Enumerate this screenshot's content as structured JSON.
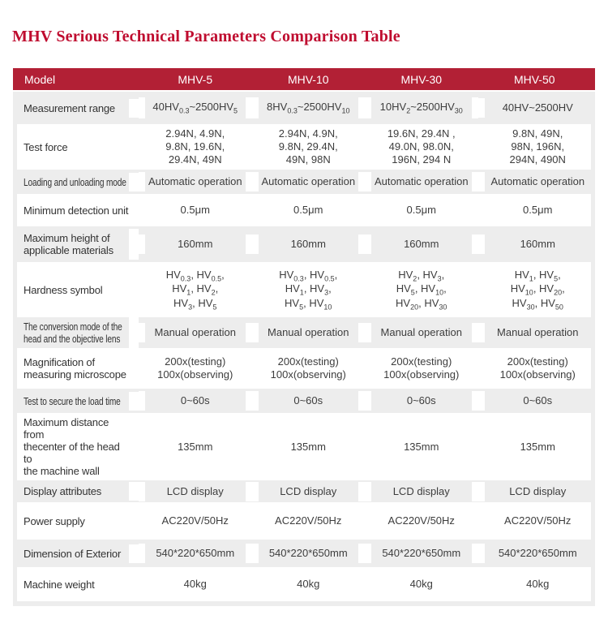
{
  "title": "MHV Serious Technical Parameters Comparison Table",
  "colors": {
    "title": "#BF0C2F",
    "header_bg": "#B22035",
    "row_gray": "#EDEDED",
    "header_text": "#FFFFFF"
  },
  "table": {
    "header": {
      "label": "Model",
      "models": [
        "MHV-5",
        "MHV-10",
        "MHV-30",
        "MHV-50"
      ]
    },
    "rows": [
      {
        "label": "Measurement range",
        "condensed": false,
        "values": [
          "40HV_{0.3}~2500HV_{5}",
          "8HV_{0.3}~2500HV_{10}",
          "10HV_{2}~2500HV_{30}",
          "40HV~2500HV"
        ]
      },
      {
        "label": "Test force",
        "condensed": false,
        "values": [
          "2.94N、4.9N、\n9.8N、19.6N、\n29.4N、49N",
          "2.94N、4.9N、\n9.8N、29.4N、\n49N、98N",
          "19.6N、29.4N 、\n49.0N、98.0N、\n196N、294 N",
          "9.8N、49N、\n98N、196N、\n294N、490N"
        ]
      },
      {
        "label": "Loading and unloading mode",
        "condensed": true,
        "values": [
          "Automatic operation",
          "Automatic operation",
          "Automatic operation",
          "Automatic operation"
        ]
      },
      {
        "label": "Minimum detection unit",
        "condensed": false,
        "values": [
          "0.5μm",
          "0.5μm",
          "0.5μm",
          "0.5μm"
        ]
      },
      {
        "label": "Maximum height of\napplicable materials",
        "condensed": false,
        "values": [
          "160mm",
          "160mm",
          "160mm",
          "160mm"
        ]
      },
      {
        "label": "Hardness symbol",
        "condensed": false,
        "values": [
          "HV_{0.3}、HV_{0.5}、\nHV_{1}、HV_{2}、\nHV_{3}、HV_{5}",
          "HV_{0.3}、HV_{0.5}、\nHV_{1}、HV_{3}、\nHV_{5}、HV_{10}",
          "HV_{2}、HV_{3}、\nHV_{5}、HV_{10}、\nHV_{20}、HV_{30}",
          "HV_{1}、HV_{5}、\nHV_{10}、HV_{20}、\nHV_{30}、HV_{50}"
        ]
      },
      {
        "label": "The conversion mode of the\nhead and the objective lens",
        "condensed": true,
        "values": [
          "Manual operation",
          "Manual operation",
          "Manual operation",
          "Manual operation"
        ]
      },
      {
        "label": "Magnification of\nmeasuring microscope",
        "condensed": false,
        "values": [
          "200x(testing)\n100x(observing)",
          "200x(testing)\n100x(observing)",
          "200x(testing)\n100x(observing)",
          "200x(testing)\n100x(observing)"
        ]
      },
      {
        "label": "Test to secure the load time",
        "condensed": true,
        "values": [
          "0~60s",
          "0~60s",
          "0~60s",
          "0~60s"
        ]
      },
      {
        "label": "Maximum distance from\nthecenter of the head to\nthe machine wall",
        "condensed": false,
        "values": [
          "135mm",
          "135mm",
          "135mm",
          "135mm"
        ]
      },
      {
        "label": "Display attributes",
        "condensed": false,
        "values": [
          "LCD display",
          "LCD display",
          "LCD display",
          "LCD display"
        ]
      },
      {
        "label": "Power supply",
        "condensed": false,
        "values": [
          "AC220V/50Hz",
          "AC220V/50Hz",
          "AC220V/50Hz",
          "AC220V/50Hz"
        ]
      },
      {
        "label": "Dimension of Exterior",
        "condensed": false,
        "values": [
          "540*220*650mm",
          "540*220*650mm",
          "540*220*650mm",
          "540*220*650mm"
        ]
      },
      {
        "label": "Machine weight",
        "condensed": false,
        "values": [
          "40kg",
          "40kg",
          "40kg",
          "40kg"
        ]
      }
    ]
  }
}
